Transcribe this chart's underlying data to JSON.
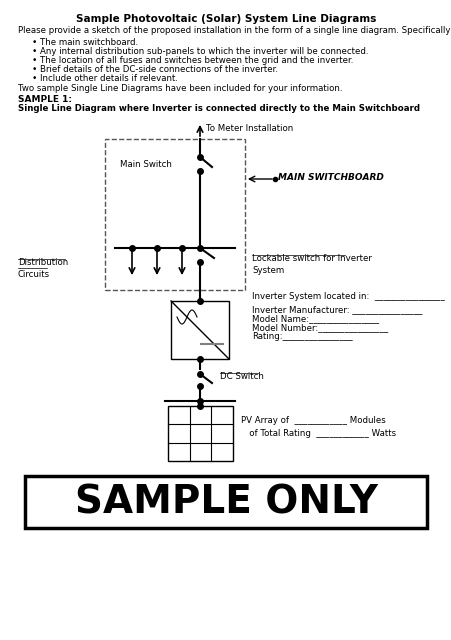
{
  "title": "Sample Photovoltaic (Solar) System Line Diagrams",
  "intro_text": "Please provide a sketch of the proposed installation in the form of a single line diagram. Specifically, show:",
  "bullets": [
    "The main switchboard.",
    "Any internal distribution sub-panels to which the inverter will be connected.",
    "The location of all fuses and switches between the grid and the inverter.",
    "Brief details of the DC-side connections of the inverter.",
    "Include other details if relevant."
  ],
  "footer_intro": "Two sample Single Line Diagrams have been included for your information.",
  "sample_label": "SAMPLE 1:",
  "sample_desc": "Single Line Diagram where Inverter is connected directly to the Main Switchboard",
  "label_to_meter": "To Meter Installation",
  "label_main_switch": "Main Switch",
  "label_main_switchboard": "MAIN SWITCHBOARD",
  "label_distribution": "Distribution\nCircuits",
  "label_lockable": "Lockable switch for Inverter\nSystem",
  "label_inverter_located": "Inverter System located in:  ________________",
  "label_inv_manufacturer": "Inverter Manufacturer: ________________",
  "label_model_name": "Model Name:________________",
  "label_model_number": "Model Number:________________",
  "label_rating": "Rating:________________",
  "label_dc_switch": "DC Switch",
  "label_pv_array": "PV Array of  ____________ Modules\n   of Total Rating  ____________ Watts",
  "label_sample_only": "SAMPLE ONLY",
  "bg_color": "#ffffff",
  "line_color": "#000000",
  "dashed_box_color": "#555555"
}
